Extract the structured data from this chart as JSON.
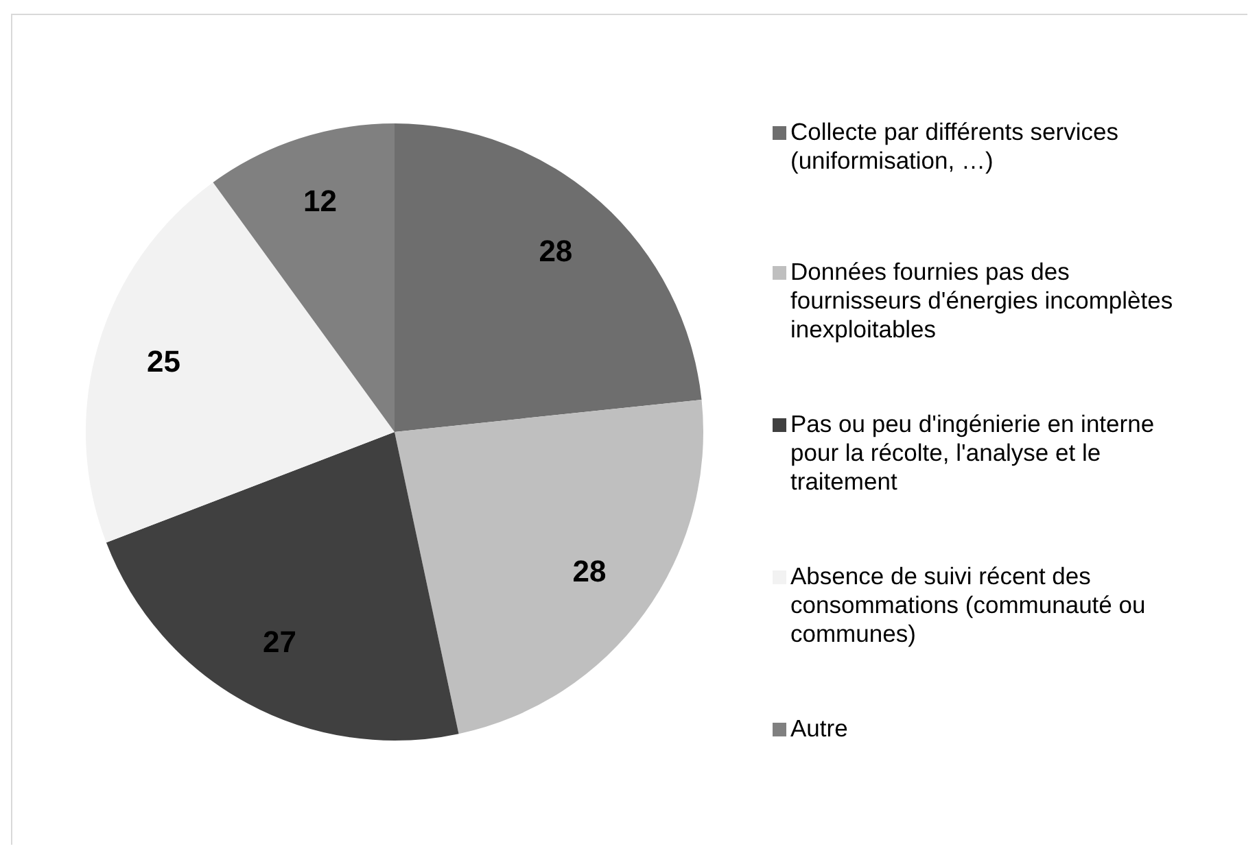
{
  "chart_data": {
    "type": "pie",
    "categories": [
      "Collecte par différents services (uniformisation, …)",
      "Données fournies pas des fournisseurs d'énergies incomplètes inexploitables",
      "Pas ou peu d'ingénierie en interne pour la récolte, l'analyse et le traitement",
      "Absence de suivi récent des consommations (communauté ou communes)",
      "Autre"
    ],
    "values": [
      28,
      28,
      27,
      25,
      12
    ],
    "colors": [
      "#6e6e6e",
      "#bfbfbf",
      "#404040",
      "#f2f2f2",
      "#808080"
    ],
    "data_labels": true,
    "legend": "right"
  }
}
